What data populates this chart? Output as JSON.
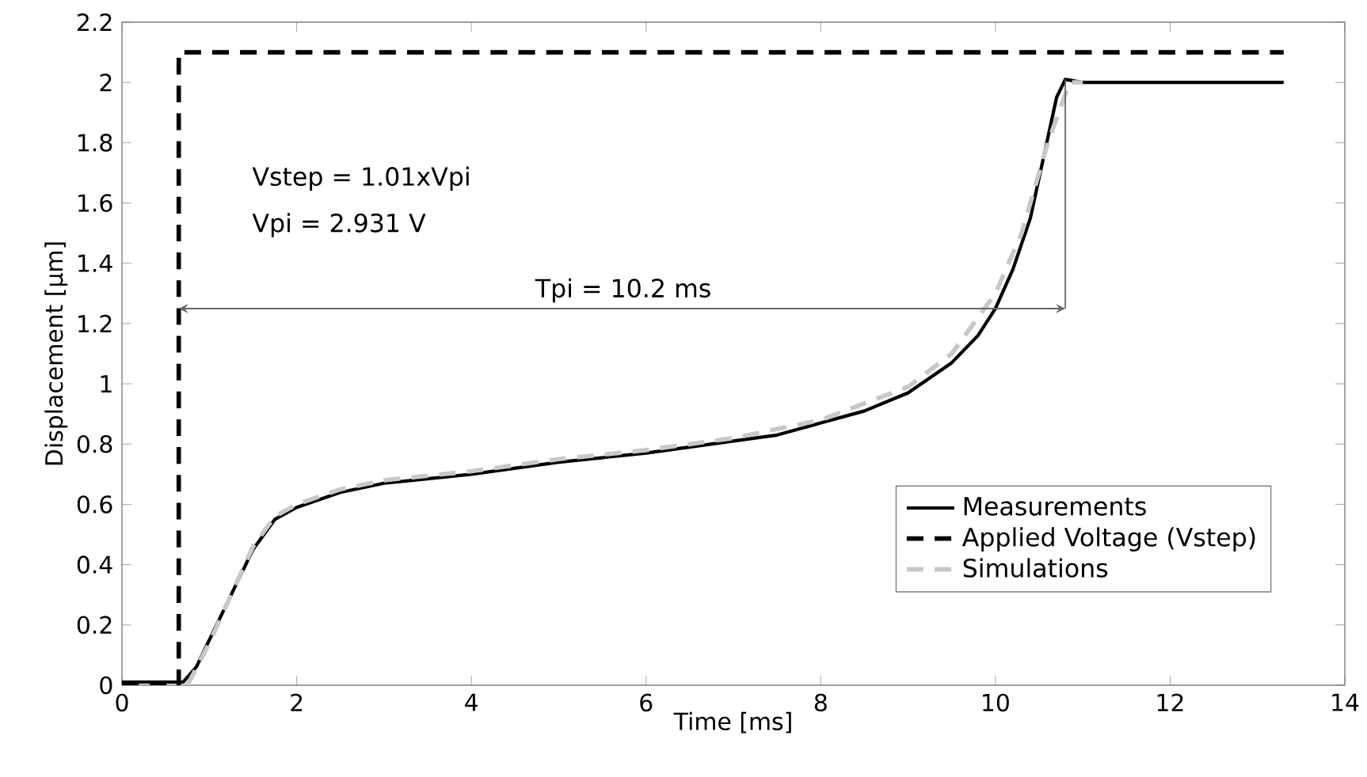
{
  "chart_data": {
    "type": "line",
    "xlabel": "Time [ms]",
    "ylabel": "Displacement [µm]",
    "xlim": [
      0,
      14
    ],
    "ylim": [
      0,
      2.2
    ],
    "xticks": [
      0,
      2,
      4,
      6,
      8,
      10,
      12,
      14
    ],
    "yticks": [
      0,
      0.2,
      0.4,
      0.6,
      0.8,
      1,
      1.2,
      1.4,
      1.6,
      1.8,
      2,
      2.2
    ],
    "legend": "bottom right",
    "grid": false,
    "annotations": [
      "Vstep = 1.01xVpi",
      "Vpi = 2.931 V",
      "Tpi = 10.2 ms"
    ],
    "series": [
      {
        "name": "Measurements",
        "color": "#000000",
        "line_style": "solid",
        "x": [
          0,
          0.3,
          0.7,
          0.85,
          1.0,
          1.25,
          1.5,
          1.75,
          2.0,
          2.5,
          3,
          4,
          5,
          6,
          7,
          7.5,
          8,
          8.5,
          9,
          9.5,
          9.8,
          10,
          10.2,
          10.4,
          10.55,
          10.7,
          10.8,
          11,
          12,
          13.3
        ],
        "values": [
          0.01,
          0.01,
          0.01,
          0.06,
          0.15,
          0.3,
          0.45,
          0.55,
          0.59,
          0.64,
          0.67,
          0.7,
          0.74,
          0.77,
          0.81,
          0.83,
          0.87,
          0.91,
          0.97,
          1.07,
          1.16,
          1.25,
          1.38,
          1.55,
          1.75,
          1.95,
          2.01,
          2.0,
          2.0,
          2.0
        ]
      },
      {
        "name": "Applied Voltage (Vstep)",
        "color": "#000000",
        "line_style": "dashed",
        "x": [
          0,
          0.65,
          0.65,
          13.3
        ],
        "values": [
          0,
          0,
          2.1,
          2.1
        ]
      },
      {
        "name": "Simulations",
        "color": "#c8c8c8",
        "line_style": "dashed",
        "x": [
          0.75,
          1.0,
          1.25,
          1.5,
          1.75,
          2.0,
          2.5,
          3,
          4,
          5,
          6,
          7,
          8,
          9,
          9.5,
          10,
          10.3,
          10.6,
          10.85,
          11
        ],
        "values": [
          0,
          0.14,
          0.3,
          0.46,
          0.56,
          0.6,
          0.65,
          0.68,
          0.71,
          0.75,
          0.78,
          0.82,
          0.88,
          0.99,
          1.1,
          1.3,
          1.5,
          1.8,
          2.0,
          2.0
        ]
      }
    ]
  }
}
